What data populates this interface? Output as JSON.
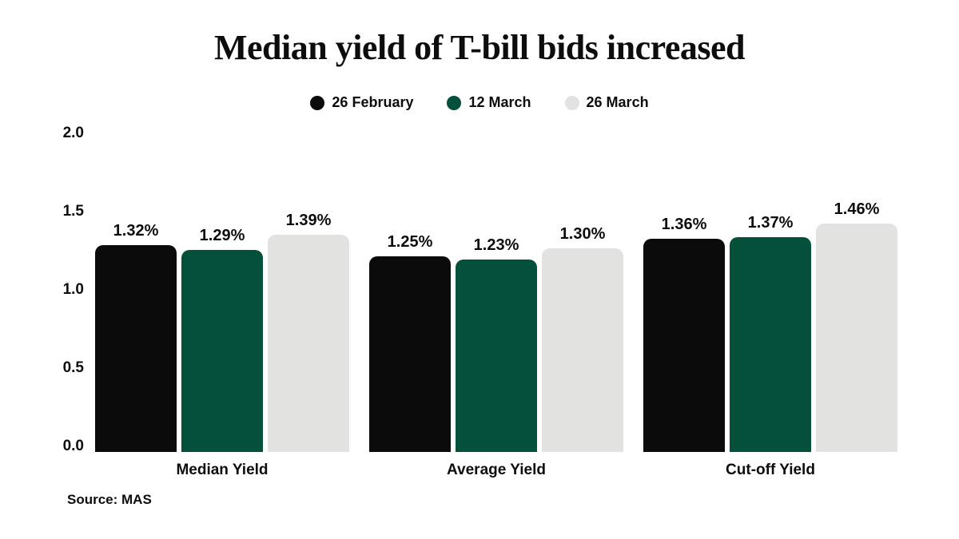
{
  "title": "Median yield of T-bill bids increased",
  "source": "Source: MAS",
  "chart_data": {
    "type": "bar",
    "title": "Median yield of T-bill bids increased",
    "categories": [
      "Median Yield",
      "Average Yield",
      "Cut-off Yield"
    ],
    "series": [
      {
        "name": "26 February",
        "color": "#0b0b0b",
        "values": [
          1.32,
          1.25,
          1.36
        ],
        "labels": [
          "1.32%",
          "1.25%",
          "1.36%"
        ]
      },
      {
        "name": "12 March",
        "color": "#04503a",
        "values": [
          1.29,
          1.23,
          1.37
        ],
        "labels": [
          "1.29%",
          "1.23%",
          "1.37%"
        ]
      },
      {
        "name": "26 March",
        "color": "#e2e2e0",
        "values": [
          1.39,
          1.3,
          1.46
        ],
        "labels": [
          "1.39%",
          "1.30%",
          "1.46%"
        ]
      }
    ],
    "xlabel": "",
    "ylabel": "",
    "ylim": [
      0,
      2.0
    ],
    "yticks": [
      2.0,
      1.5,
      1.0,
      0.5,
      0.0
    ],
    "ytick_labels": [
      "2.0",
      "1.5",
      "1.0",
      "0.5",
      "0.0"
    ],
    "grid": false,
    "legend_position": "top",
    "source_note": "Source: MAS"
  }
}
